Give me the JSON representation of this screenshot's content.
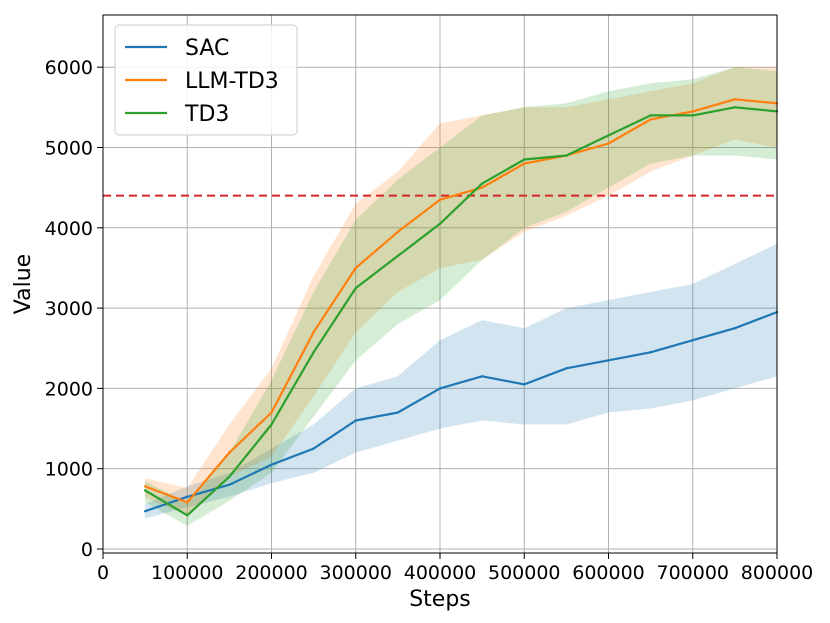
{
  "chart_data": {
    "type": "line",
    "title": "",
    "xlabel": "Steps",
    "ylabel": "Value",
    "xlim": [
      0,
      800000
    ],
    "ylim": [
      -50,
      6650
    ],
    "xticks": [
      0,
      100000,
      200000,
      300000,
      400000,
      500000,
      600000,
      700000,
      800000
    ],
    "xtick_labels": [
      "0",
      "100000",
      "200000",
      "300000",
      "400000",
      "500000",
      "600000",
      "700000",
      "800000"
    ],
    "yticks": [
      0,
      1000,
      2000,
      3000,
      4000,
      5000,
      6000
    ],
    "ytick_labels": [
      "0",
      "1000",
      "2000",
      "3000",
      "4000",
      "5000",
      "6000"
    ],
    "grid": true,
    "legend_position": "top-left",
    "reference_line": {
      "y": 4400,
      "style": "dashed",
      "color": "#d62728"
    },
    "x": [
      50000,
      100000,
      150000,
      200000,
      250000,
      300000,
      350000,
      400000,
      450000,
      500000,
      550000,
      600000,
      650000,
      700000,
      750000,
      800000
    ],
    "series": [
      {
        "name": "SAC",
        "color": "#1f77b4",
        "values": [
          470,
          650,
          800,
          1050,
          1250,
          1600,
          1700,
          2000,
          2150,
          2050,
          2250,
          2350,
          2450,
          2600,
          2750,
          2950
        ],
        "lower": [
          380,
          520,
          650,
          820,
          950,
          1200,
          1350,
          1500,
          1600,
          1550,
          1550,
          1700,
          1750,
          1850,
          2000,
          2150
        ],
        "upper": [
          560,
          780,
          950,
          1250,
          1550,
          2000,
          2150,
          2600,
          2850,
          2750,
          3000,
          3100,
          3200,
          3300,
          3550,
          3800
        ]
      },
      {
        "name": "LLM-TD3",
        "color": "#ff7f0e",
        "values": [
          780,
          580,
          1200,
          1700,
          2700,
          3500,
          3950,
          4350,
          4500,
          4800,
          4900,
          5050,
          5350,
          5450,
          5600,
          5550
        ],
        "lower": [
          640,
          420,
          900,
          1150,
          1900,
          2700,
          3200,
          3500,
          3600,
          3950,
          4150,
          4400,
          4700,
          4900,
          5100,
          5000
        ],
        "upper": [
          880,
          760,
          1550,
          2250,
          3400,
          4300,
          4700,
          5300,
          5400,
          5500,
          5500,
          5600,
          5700,
          5800,
          6000,
          6000
        ]
      },
      {
        "name": "TD3",
        "color": "#2ca02c",
        "values": [
          730,
          420,
          900,
          1550,
          2450,
          3250,
          3650,
          4050,
          4550,
          4850,
          4900,
          5150,
          5400,
          5400,
          5500,
          5450
        ],
        "lower": [
          580,
          290,
          600,
          950,
          1650,
          2350,
          2800,
          3100,
          3600,
          4000,
          4200,
          4500,
          4800,
          4900,
          4900,
          4850
        ],
        "upper": [
          840,
          580,
          1200,
          2100,
          3200,
          4100,
          4600,
          5000,
          5400,
          5500,
          5550,
          5700,
          5800,
          5850,
          6000,
          5950
        ]
      }
    ]
  }
}
